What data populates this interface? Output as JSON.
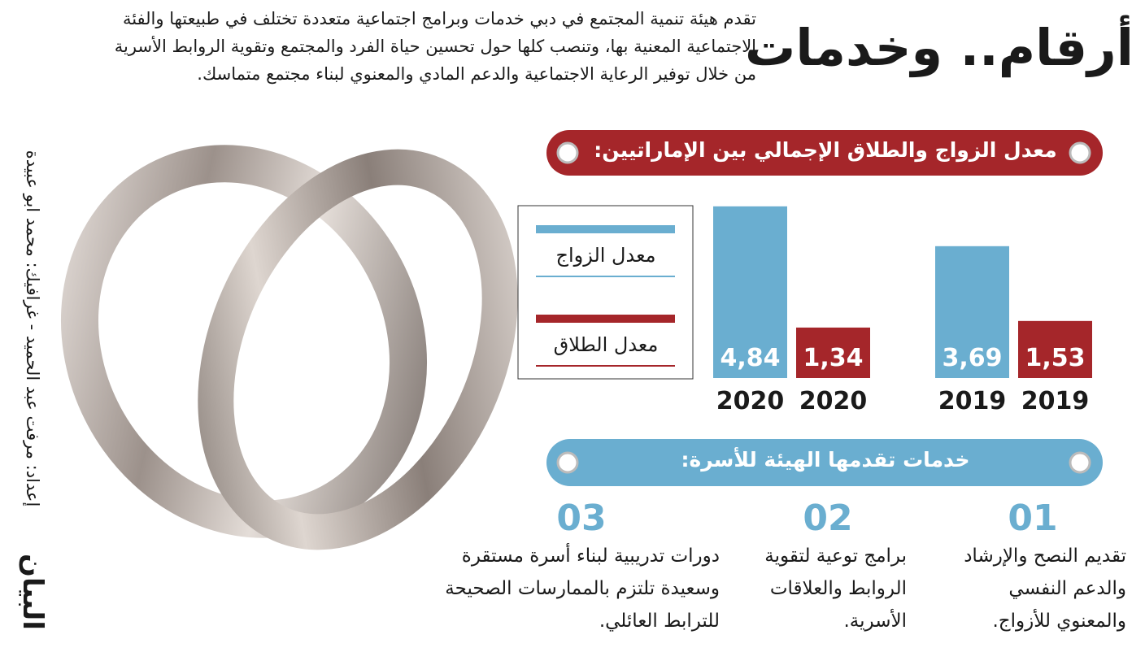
{
  "header": {
    "title": "أرقام.. وخدمات",
    "intro": [
      "تقدم هيئة تنمية المجتمع في دبي خدمات وبرامج اجتماعية متعددة تختلف في طبيعتها والفئة",
      "الاجتماعية المعنية بها، وتنصب كلها حول تحسين حياة الفرد والمجتمع وتقوية الروابط الأسرية",
      "من خلال توفير الرعاية الاجتماعية والدعم المادي والمعنوي لبناء مجتمع متماسك."
    ]
  },
  "credits": "إعداد: مرفت عبد الحميد - غرافيك: محمد ابو عبيدة",
  "logo": "البيان",
  "chart_data": {
    "type": "bar",
    "title": "معدل الزواج والطلاق الإجمالي بين الإماراتيين:",
    "categories": [
      "2020",
      "2019"
    ],
    "series": [
      {
        "name": "معدل الزواج",
        "color": "#6aaed0",
        "values": [
          4.84,
          3.69
        ],
        "value_labels": [
          "4,84",
          "3,69"
        ]
      },
      {
        "name": "معدل الطلاق",
        "color": "#a5262a",
        "values": [
          1.34,
          1.53
        ],
        "value_labels": [
          "1,34",
          "1,53"
        ]
      }
    ]
  },
  "services": {
    "title": "خدمات تقدمها الهيئة للأسرة:",
    "items": [
      {
        "number": "01",
        "lines": [
          "تقديم النصح والإرشاد",
          "والدعم النفسي",
          "والمعنوي للأزواج."
        ]
      },
      {
        "number": "02",
        "lines": [
          "برامج توعية لتقوية",
          "الروابط والعلاقات",
          "الأسرية."
        ]
      },
      {
        "number": "03",
        "lines": [
          "دورات تدريبية لبناء أسرة مستقرة",
          "وسعيدة تلتزم بالممارسات الصحيحة",
          "للترابط العائلي."
        ]
      }
    ]
  }
}
